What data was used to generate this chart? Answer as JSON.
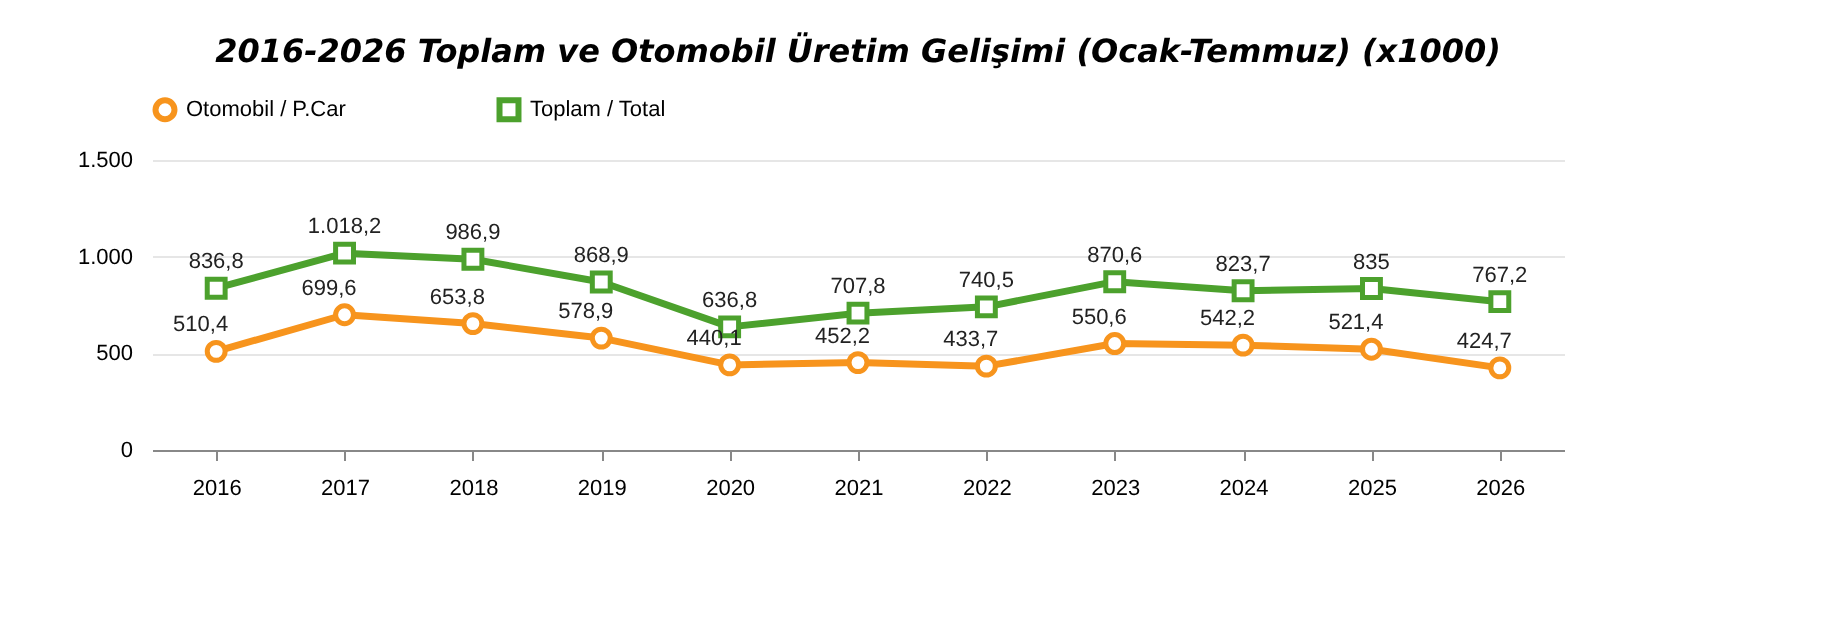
{
  "chart_data": {
    "type": "line",
    "title": "2016-2026 Toplam ve Otomobil Üretim Gelişimi (Ocak-Temmuz) (x1000)",
    "categories": [
      "2016",
      "2017",
      "2018",
      "2019",
      "2020",
      "2021",
      "2022",
      "2023",
      "2024",
      "2025",
      "2026"
    ],
    "series": [
      {
        "name": "Otomobil / P.Car",
        "color": "#f7941d",
        "marker": "circle",
        "values": [
          510.4,
          699.6,
          653.8,
          578.9,
          440.1,
          452.2,
          433.7,
          550.6,
          542.2,
          521.4,
          424.7
        ],
        "value_labels": [
          "510,4",
          "699,6",
          "653,8",
          "578,9",
          "440,1",
          "452,2",
          "433,7",
          "550,6",
          "542,2",
          "521,4",
          "424,7"
        ]
      },
      {
        "name": "Toplam / Total",
        "color": "#4ca12d",
        "marker": "square",
        "values": [
          836.8,
          1018.2,
          986.9,
          868.9,
          636.8,
          707.8,
          740.5,
          870.6,
          823.7,
          835,
          767.2
        ],
        "value_labels": [
          "836,8",
          "1.018,2",
          "986,9",
          "868,9",
          "636,8",
          "707,8",
          "740,5",
          "870,6",
          "823,7",
          "835",
          "767,2"
        ]
      }
    ],
    "ylim": [
      0,
      1500
    ],
    "yticks": [
      0,
      500,
      {
        "value": 1000,
        "label": "1.000"
      },
      {
        "value": 1500,
        "label": "1.500"
      }
    ],
    "grid": "y",
    "legend": "top left",
    "line_style": "solid"
  }
}
